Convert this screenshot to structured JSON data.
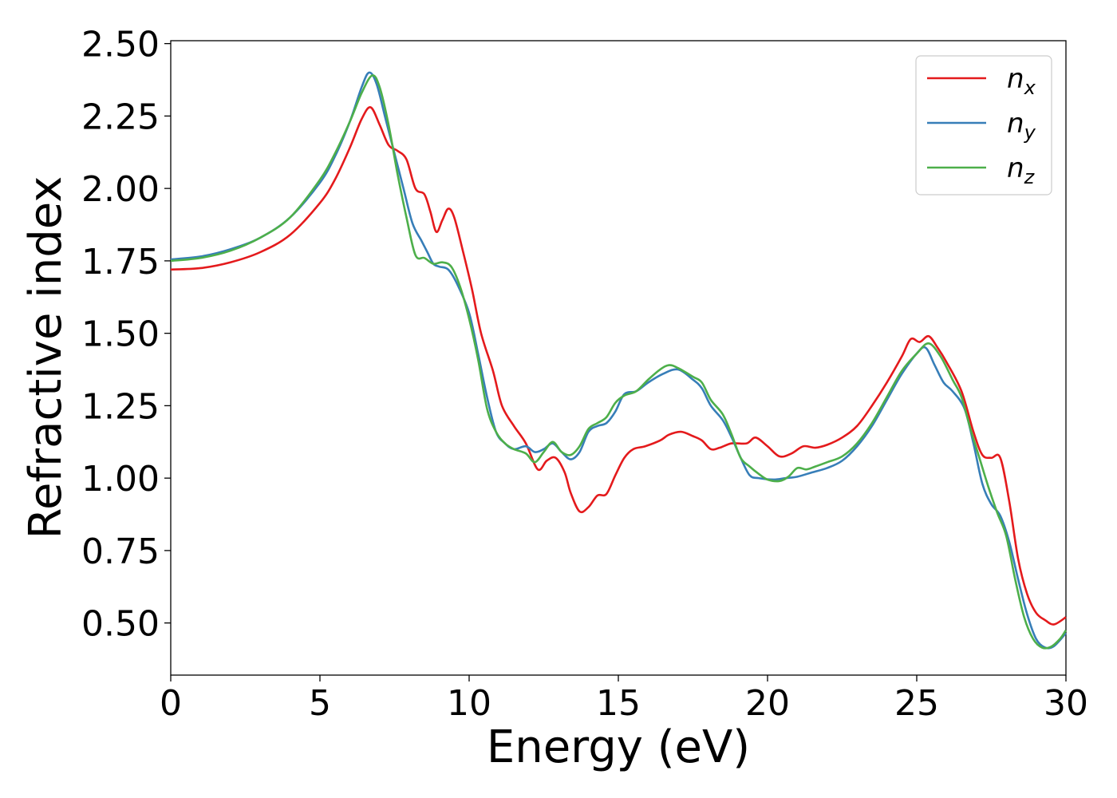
{
  "chart_data": {
    "type": "line",
    "xlabel": "Energy (eV)",
    "ylabel": "Refractive index",
    "xlim": [
      0,
      30
    ],
    "ylim": [
      0.32,
      2.51
    ],
    "xticks": [
      0,
      5,
      10,
      15,
      20,
      25,
      30
    ],
    "xtick_labels": [
      "0",
      "5",
      "10",
      "15",
      "20",
      "25",
      "30"
    ],
    "yticks": [
      0.5,
      0.75,
      1.0,
      1.25,
      1.5,
      1.75,
      2.0,
      2.25,
      2.5
    ],
    "ytick_labels": [
      "0.50",
      "0.75",
      "1.00",
      "1.25",
      "1.50",
      "1.75",
      "2.00",
      "2.25",
      "2.50"
    ],
    "grid": false,
    "legend_position": "top-right",
    "series": [
      {
        "name": "n_x",
        "legend_base": "n",
        "legend_sub": "x",
        "color": "#e41a1c",
        "points": [
          [
            0,
            1.72
          ],
          [
            1,
            1.725
          ],
          [
            2,
            1.745
          ],
          [
            3,
            1.78
          ],
          [
            4,
            1.84
          ],
          [
            5,
            1.95
          ],
          [
            5.5,
            2.03
          ],
          [
            6,
            2.14
          ],
          [
            6.4,
            2.24
          ],
          [
            6.7,
            2.28
          ],
          [
            7,
            2.22
          ],
          [
            7.3,
            2.15
          ],
          [
            7.6,
            2.13
          ],
          [
            7.9,
            2.1
          ],
          [
            8.2,
            2.0
          ],
          [
            8.5,
            1.98
          ],
          [
            8.7,
            1.92
          ],
          [
            8.9,
            1.85
          ],
          [
            9.1,
            1.89
          ],
          [
            9.3,
            1.93
          ],
          [
            9.5,
            1.9
          ],
          [
            9.8,
            1.78
          ],
          [
            10.1,
            1.65
          ],
          [
            10.4,
            1.5
          ],
          [
            10.8,
            1.37
          ],
          [
            11.1,
            1.25
          ],
          [
            11.5,
            1.18
          ],
          [
            11.9,
            1.12
          ],
          [
            12.3,
            1.03
          ],
          [
            12.6,
            1.06
          ],
          [
            12.9,
            1.07
          ],
          [
            13.2,
            1.02
          ],
          [
            13.4,
            0.95
          ],
          [
            13.7,
            0.885
          ],
          [
            14.0,
            0.9
          ],
          [
            14.3,
            0.94
          ],
          [
            14.6,
            0.945
          ],
          [
            14.9,
            1.01
          ],
          [
            15.2,
            1.07
          ],
          [
            15.5,
            1.1
          ],
          [
            15.9,
            1.11
          ],
          [
            16.4,
            1.13
          ],
          [
            16.7,
            1.15
          ],
          [
            17.1,
            1.16
          ],
          [
            17.5,
            1.145
          ],
          [
            17.8,
            1.13
          ],
          [
            18.1,
            1.1
          ],
          [
            18.4,
            1.105
          ],
          [
            18.8,
            1.12
          ],
          [
            19.3,
            1.12
          ],
          [
            19.6,
            1.14
          ],
          [
            20.0,
            1.11
          ],
          [
            20.4,
            1.075
          ],
          [
            20.8,
            1.085
          ],
          [
            21.2,
            1.11
          ],
          [
            21.6,
            1.105
          ],
          [
            22.0,
            1.115
          ],
          [
            22.5,
            1.14
          ],
          [
            23.0,
            1.18
          ],
          [
            23.5,
            1.25
          ],
          [
            24.0,
            1.33
          ],
          [
            24.5,
            1.42
          ],
          [
            24.8,
            1.48
          ],
          [
            25.1,
            1.47
          ],
          [
            25.4,
            1.49
          ],
          [
            25.7,
            1.45
          ],
          [
            26.0,
            1.4
          ],
          [
            26.5,
            1.3
          ],
          [
            26.9,
            1.16
          ],
          [
            27.2,
            1.08
          ],
          [
            27.5,
            1.07
          ],
          [
            27.8,
            1.07
          ],
          [
            28.1,
            0.92
          ],
          [
            28.4,
            0.72
          ],
          [
            28.7,
            0.6
          ],
          [
            29.0,
            0.535
          ],
          [
            29.3,
            0.51
          ],
          [
            29.6,
            0.495
          ],
          [
            30.0,
            0.52
          ]
        ]
      },
      {
        "name": "n_y",
        "legend_base": "n",
        "legend_sub": "y",
        "color": "#377eb8",
        "points": [
          [
            0,
            1.755
          ],
          [
            1,
            1.765
          ],
          [
            2,
            1.79
          ],
          [
            3,
            1.83
          ],
          [
            4,
            1.9
          ],
          [
            5,
            2.02
          ],
          [
            5.5,
            2.11
          ],
          [
            6,
            2.23
          ],
          [
            6.4,
            2.35
          ],
          [
            6.65,
            2.4
          ],
          [
            6.9,
            2.36
          ],
          [
            7.2,
            2.24
          ],
          [
            7.5,
            2.12
          ],
          [
            7.8,
            2.0
          ],
          [
            8.1,
            1.88
          ],
          [
            8.4,
            1.82
          ],
          [
            8.6,
            1.78
          ],
          [
            8.8,
            1.74
          ],
          [
            9.0,
            1.73
          ],
          [
            9.3,
            1.72
          ],
          [
            9.6,
            1.67
          ],
          [
            10.0,
            1.57
          ],
          [
            10.3,
            1.43
          ],
          [
            10.6,
            1.28
          ],
          [
            10.9,
            1.16
          ],
          [
            11.2,
            1.12
          ],
          [
            11.5,
            1.1
          ],
          [
            11.9,
            1.11
          ],
          [
            12.2,
            1.09
          ],
          [
            12.5,
            1.1
          ],
          [
            12.8,
            1.12
          ],
          [
            13.1,
            1.09
          ],
          [
            13.4,
            1.065
          ],
          [
            13.7,
            1.09
          ],
          [
            14.0,
            1.16
          ],
          [
            14.3,
            1.18
          ],
          [
            14.6,
            1.19
          ],
          [
            14.9,
            1.23
          ],
          [
            15.2,
            1.29
          ],
          [
            15.6,
            1.3
          ],
          [
            16.0,
            1.33
          ],
          [
            16.5,
            1.36
          ],
          [
            17.0,
            1.375
          ],
          [
            17.5,
            1.34
          ],
          [
            17.8,
            1.31
          ],
          [
            18.1,
            1.25
          ],
          [
            18.5,
            1.2
          ],
          [
            18.8,
            1.14
          ],
          [
            19.1,
            1.07
          ],
          [
            19.4,
            1.01
          ],
          [
            19.7,
            1.0
          ],
          [
            20.2,
            0.995
          ],
          [
            20.6,
            1.0
          ],
          [
            21.0,
            1.005
          ],
          [
            21.5,
            1.02
          ],
          [
            22.0,
            1.035
          ],
          [
            22.5,
            1.06
          ],
          [
            23.0,
            1.11
          ],
          [
            23.5,
            1.18
          ],
          [
            24.0,
            1.27
          ],
          [
            24.5,
            1.36
          ],
          [
            25.0,
            1.43
          ],
          [
            25.3,
            1.45
          ],
          [
            25.6,
            1.39
          ],
          [
            25.9,
            1.33
          ],
          [
            26.2,
            1.3
          ],
          [
            26.6,
            1.24
          ],
          [
            26.9,
            1.12
          ],
          [
            27.2,
            0.98
          ],
          [
            27.5,
            0.91
          ],
          [
            27.8,
            0.87
          ],
          [
            28.1,
            0.78
          ],
          [
            28.4,
            0.65
          ],
          [
            28.7,
            0.53
          ],
          [
            29.0,
            0.445
          ],
          [
            29.3,
            0.415
          ],
          [
            29.6,
            0.42
          ],
          [
            30.0,
            0.465
          ]
        ]
      },
      {
        "name": "n_z",
        "legend_base": "n",
        "legend_sub": "z",
        "color": "#4daf4a",
        "points": [
          [
            0,
            1.75
          ],
          [
            1,
            1.76
          ],
          [
            2,
            1.785
          ],
          [
            3,
            1.83
          ],
          [
            4,
            1.9
          ],
          [
            5,
            2.03
          ],
          [
            5.5,
            2.12
          ],
          [
            6,
            2.23
          ],
          [
            6.4,
            2.33
          ],
          [
            6.75,
            2.39
          ],
          [
            7.0,
            2.35
          ],
          [
            7.3,
            2.22
          ],
          [
            7.6,
            2.05
          ],
          [
            7.9,
            1.9
          ],
          [
            8.2,
            1.77
          ],
          [
            8.5,
            1.76
          ],
          [
            8.8,
            1.74
          ],
          [
            9.1,
            1.745
          ],
          [
            9.4,
            1.73
          ],
          [
            9.7,
            1.66
          ],
          [
            10.0,
            1.55
          ],
          [
            10.3,
            1.41
          ],
          [
            10.6,
            1.24
          ],
          [
            10.9,
            1.16
          ],
          [
            11.2,
            1.12
          ],
          [
            11.5,
            1.1
          ],
          [
            11.9,
            1.085
          ],
          [
            12.2,
            1.055
          ],
          [
            12.5,
            1.09
          ],
          [
            12.8,
            1.125
          ],
          [
            13.1,
            1.09
          ],
          [
            13.4,
            1.08
          ],
          [
            13.7,
            1.11
          ],
          [
            14.0,
            1.17
          ],
          [
            14.3,
            1.19
          ],
          [
            14.6,
            1.21
          ],
          [
            14.9,
            1.26
          ],
          [
            15.2,
            1.285
          ],
          [
            15.6,
            1.3
          ],
          [
            16.0,
            1.34
          ],
          [
            16.4,
            1.375
          ],
          [
            16.7,
            1.39
          ],
          [
            17.0,
            1.38
          ],
          [
            17.5,
            1.35
          ],
          [
            17.8,
            1.33
          ],
          [
            18.1,
            1.27
          ],
          [
            18.5,
            1.22
          ],
          [
            18.8,
            1.15
          ],
          [
            19.1,
            1.07
          ],
          [
            19.4,
            1.04
          ],
          [
            19.7,
            1.015
          ],
          [
            20.0,
            0.995
          ],
          [
            20.4,
            0.99
          ],
          [
            20.7,
            1.005
          ],
          [
            21.0,
            1.035
          ],
          [
            21.3,
            1.03
          ],
          [
            21.6,
            1.04
          ],
          [
            22.0,
            1.055
          ],
          [
            22.5,
            1.075
          ],
          [
            23.0,
            1.12
          ],
          [
            23.5,
            1.19
          ],
          [
            24.0,
            1.28
          ],
          [
            24.5,
            1.37
          ],
          [
            25.0,
            1.43
          ],
          [
            25.4,
            1.465
          ],
          [
            25.8,
            1.42
          ],
          [
            26.2,
            1.34
          ],
          [
            26.5,
            1.28
          ],
          [
            26.8,
            1.17
          ],
          [
            27.1,
            1.07
          ],
          [
            27.4,
            0.97
          ],
          [
            27.7,
            0.88
          ],
          [
            28.0,
            0.8
          ],
          [
            28.3,
            0.65
          ],
          [
            28.6,
            0.52
          ],
          [
            28.9,
            0.445
          ],
          [
            29.2,
            0.415
          ],
          [
            29.5,
            0.418
          ],
          [
            29.8,
            0.445
          ],
          [
            30.0,
            0.475
          ]
        ]
      }
    ]
  }
}
